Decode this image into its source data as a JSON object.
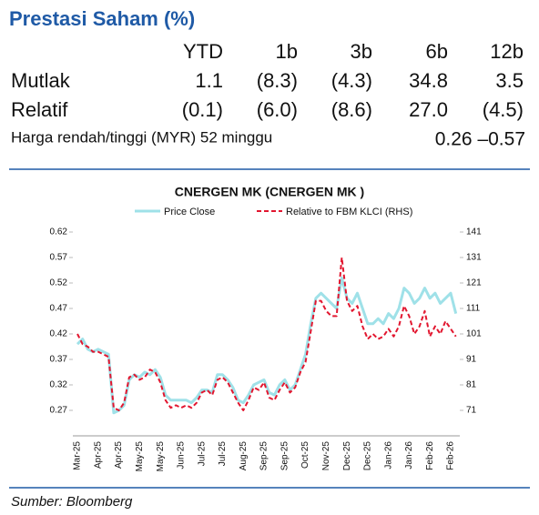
{
  "header": {
    "title": "Prestasi Saham (%)"
  },
  "table": {
    "columns": [
      "YTD",
      "1b",
      "3b",
      "6b",
      "12b"
    ],
    "rows": [
      {
        "label": "Mutlak",
        "values": [
          "1.1",
          "(8.3)",
          "(4.3)",
          "34.8",
          "3.5"
        ]
      },
      {
        "label": "Relatif",
        "values": [
          "(0.1)",
          "(6.0)",
          "(8.6)",
          "27.0",
          "(4.5)"
        ]
      }
    ],
    "range_row": {
      "label": "Harga rendah/tinggi (MYR) 52 minggu",
      "value": "0.26 –0.57"
    }
  },
  "chart_data": {
    "type": "line",
    "title": "CNERGEN MK  (CNERGEN MK )",
    "categories": [
      "Mar-25",
      null,
      null,
      null,
      "Apr-25",
      null,
      null,
      null,
      "Apr-25",
      null,
      null,
      null,
      "May-25",
      null,
      null,
      null,
      "May-25",
      null,
      null,
      null,
      "Jun-25",
      null,
      null,
      null,
      "Jul-25",
      null,
      null,
      null,
      "Jul-25",
      null,
      null,
      null,
      "Aug-25",
      null,
      null,
      null,
      "Sep-25",
      null,
      null,
      null,
      "Sep-25",
      null,
      null,
      null,
      "Oct-25",
      null,
      null,
      null,
      "Nov-25",
      null,
      null,
      null,
      "Dec-25",
      null,
      null,
      null,
      "Dec-25",
      null,
      null,
      null,
      "Jan-26",
      null,
      null,
      null,
      "Jan-26",
      null,
      null,
      null,
      "Feb-26",
      null,
      null,
      null,
      "Feb-26",
      null
    ],
    "series": [
      {
        "name": "Price Close",
        "color": "#9fe1e8",
        "values": [
          0.4,
          0.41,
          0.39,
          0.385,
          0.39,
          0.385,
          0.38,
          0.265,
          0.27,
          0.28,
          0.33,
          0.34,
          0.335,
          0.345,
          0.34,
          0.35,
          0.335,
          0.3,
          0.29,
          0.29,
          0.29,
          0.29,
          0.285,
          0.295,
          0.31,
          0.31,
          0.305,
          0.34,
          0.34,
          0.33,
          0.315,
          0.29,
          0.285,
          0.3,
          0.32,
          0.325,
          0.33,
          0.305,
          0.3,
          0.32,
          0.33,
          0.31,
          0.32,
          0.35,
          0.38,
          0.44,
          0.49,
          0.5,
          0.49,
          0.48,
          0.47,
          0.53,
          0.49,
          0.48,
          0.5,
          0.47,
          0.44,
          0.44,
          0.45,
          0.44,
          0.46,
          0.45,
          0.47,
          0.51,
          0.5,
          0.48,
          0.49,
          0.51,
          0.49,
          0.5,
          0.48,
          0.49,
          0.5,
          0.46
        ]
      },
      {
        "name": "Relative to FBM KLCI (RHS)",
        "color": "#e2162f",
        "axis": "y2",
        "dashed": true,
        "values": [
          101,
          97,
          96,
          94,
          94,
          93,
          92,
          72,
          71,
          74,
          84,
          85,
          83,
          84,
          87,
          86,
          82,
          75,
          72,
          73,
          72,
          73,
          72,
          74,
          78,
          79,
          77,
          83,
          84,
          82,
          78,
          74,
          71,
          75,
          80,
          79,
          82,
          76,
          75,
          79,
          82,
          78,
          80,
          86,
          90,
          102,
          114,
          114,
          110,
          108,
          108,
          131,
          114,
          110,
          112,
          104,
          99,
          101,
          99,
          100,
          103,
          100,
          104,
          112,
          108,
          101,
          104,
          110,
          100,
          104,
          101,
          106,
          103,
          100
        ]
      }
    ],
    "ylim": [
      0.22,
      0.62
    ],
    "yticks": [
      0.27,
      0.32,
      0.37,
      0.42,
      0.47,
      0.52,
      0.57,
      0.62
    ],
    "y2lim": [
      61,
      141
    ],
    "y2ticks": [
      71,
      81,
      91,
      101,
      111,
      121,
      131,
      141
    ]
  },
  "source": "Sumber: Bloomberg"
}
